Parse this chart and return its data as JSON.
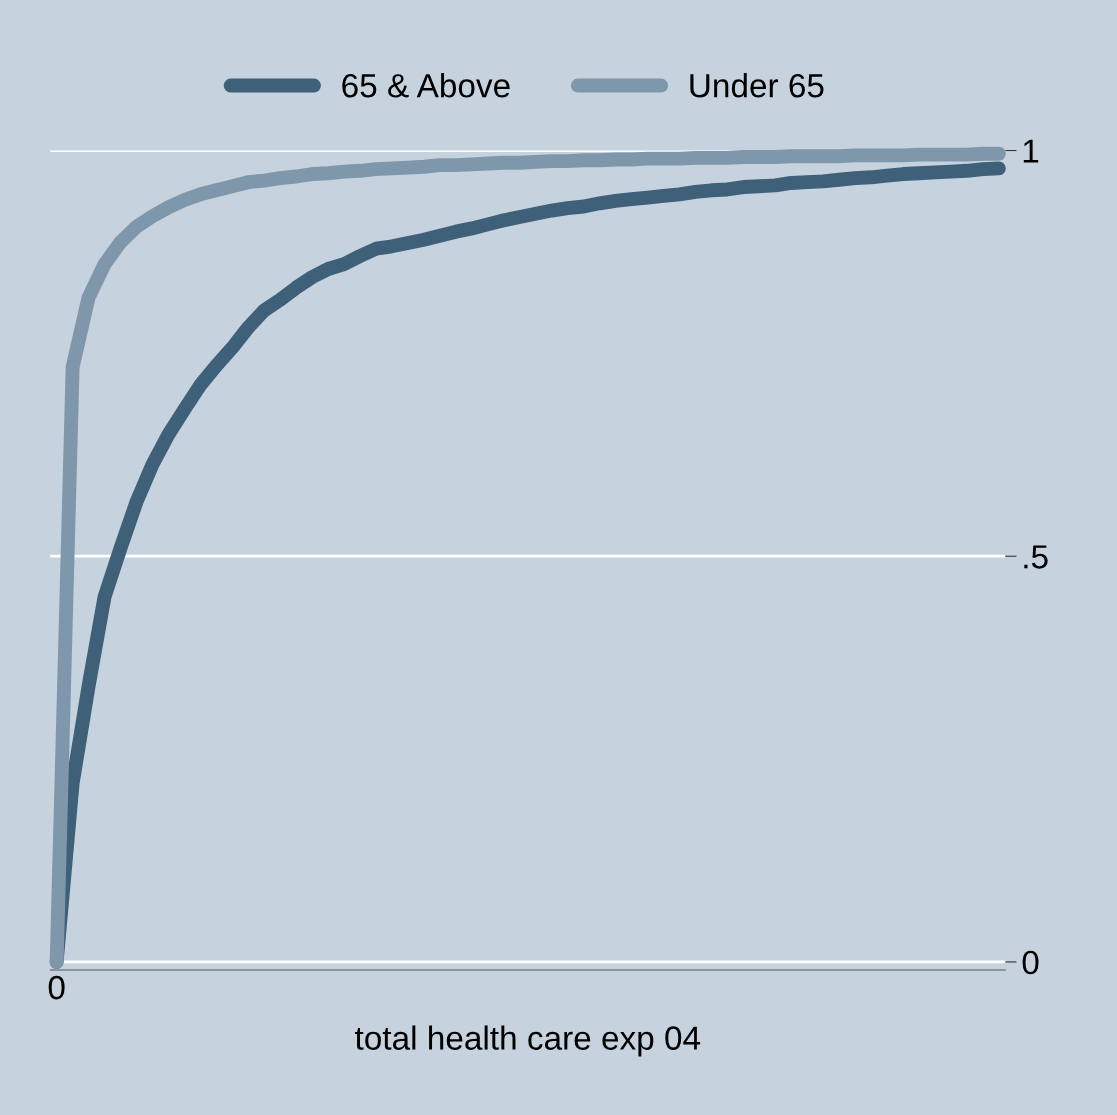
{
  "chart_data": {
    "type": "line",
    "xlabel": "total health care exp 04",
    "categories": [
      "0",
      null,
      null,
      null,
      null,
      null,
      null,
      null,
      null,
      null,
      null,
      null,
      null,
      null,
      null,
      null,
      null,
      null,
      null,
      null,
      null,
      null,
      null,
      null,
      null,
      null,
      null,
      null,
      null,
      null,
      null,
      null,
      null,
      null,
      null,
      null,
      null,
      null,
      null,
      null,
      null,
      null,
      null,
      null,
      null,
      null,
      null,
      null,
      null,
      null,
      null,
      null,
      null,
      null,
      null,
      null,
      null,
      null,
      null,
      null
    ],
    "series": [
      {
        "name": "65 & Above",
        "color": "#3e6079",
        "values": [
          0,
          0.22,
          0.34,
          0.45,
          0.51,
          0.567,
          0.613,
          0.65,
          0.681,
          0.711,
          0.735,
          0.757,
          0.782,
          0.803,
          0.816,
          0.831,
          0.844,
          0.854,
          0.86,
          0.87,
          0.879,
          0.882,
          0.886,
          0.89,
          0.895,
          0.9,
          0.904,
          0.909,
          0.914,
          0.918,
          0.922,
          0.926,
          0.929,
          0.931,
          0.935,
          0.938,
          0.94,
          0.942,
          0.944,
          0.946,
          0.949,
          0.951,
          0.952,
          0.955,
          0.956,
          0.957,
          0.96,
          0.961,
          0.962,
          0.964,
          0.966,
          0.967,
          0.969,
          0.971,
          0.972,
          0.973,
          0.974,
          0.975,
          0.977,
          0.978
        ]
      },
      {
        "name": "Under 65",
        "color": "#7f97ab",
        "values": [
          0,
          0.733,
          0.819,
          0.86,
          0.887,
          0.906,
          0.919,
          0.93,
          0.939,
          0.946,
          0.951,
          0.956,
          0.961,
          0.963,
          0.966,
          0.968,
          0.971,
          0.972,
          0.974,
          0.975,
          0.977,
          0.978,
          0.979,
          0.98,
          0.982,
          0.982,
          0.983,
          0.984,
          0.985,
          0.985,
          0.986,
          0.987,
          0.987,
          0.988,
          0.988,
          0.989,
          0.989,
          0.99,
          0.99,
          0.99,
          0.991,
          0.991,
          0.991,
          0.992,
          0.992,
          0.992,
          0.993,
          0.993,
          0.993,
          0.993,
          0.994,
          0.994,
          0.994,
          0.994,
          0.995,
          0.995,
          0.995,
          0.995,
          0.996,
          0.996
        ]
      }
    ],
    "ylim": [
      -0.01,
      1
    ],
    "yticks": [
      0,
      {
        "value": 0.5,
        "label": ".5"
      },
      1
    ],
    "grid": "y",
    "legend": "top",
    "line_style": "solid"
  }
}
